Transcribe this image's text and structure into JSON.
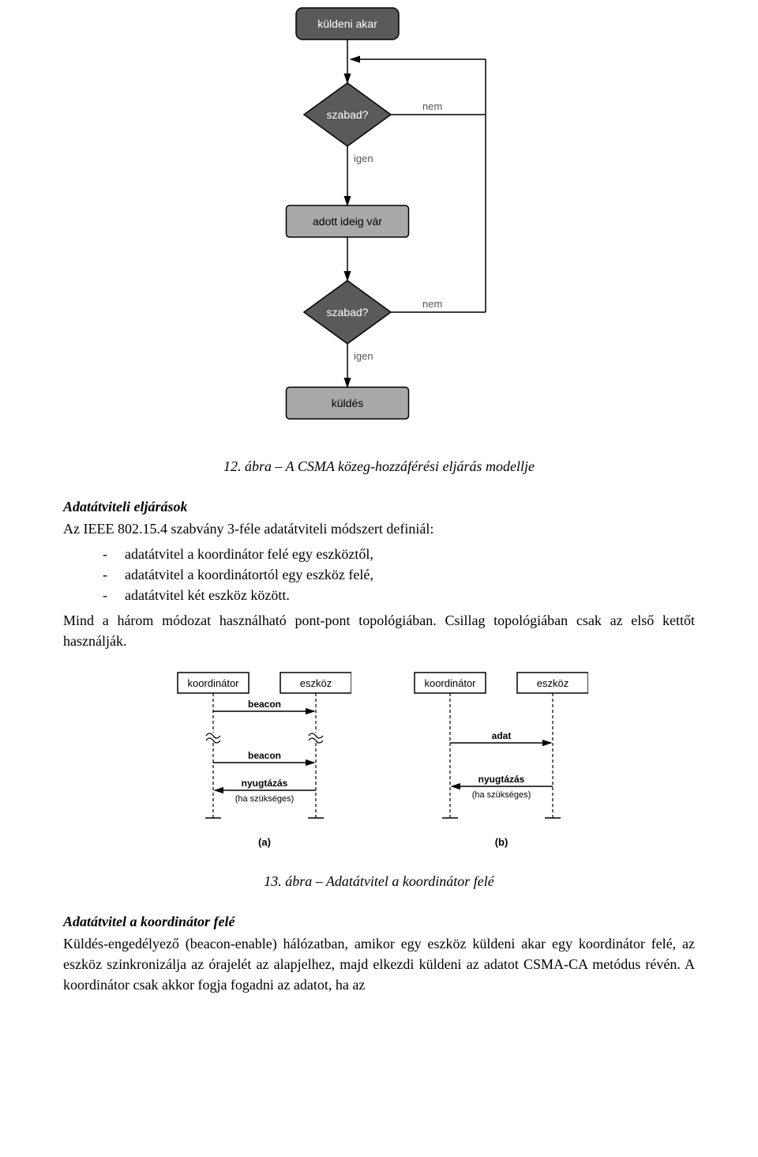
{
  "flowchart": {
    "type": "flowchart",
    "nodes": {
      "start": {
        "label": "küldeni akar",
        "shape": "rect",
        "fill": "#5a5a5a",
        "text_color": "#ffffff",
        "border": "#000000",
        "rx": 8
      },
      "free1": {
        "label": "szabad?",
        "shape": "diamond",
        "fill": "#5a5a5a",
        "text_color": "#ffffff",
        "border": "#000000"
      },
      "wait": {
        "label": "adott ideig vár",
        "shape": "rect",
        "fill": "#a9a9a9",
        "text_color": "#000000",
        "border": "#000000",
        "rx": 4
      },
      "free2": {
        "label": "szabad?",
        "shape": "diamond",
        "fill": "#5a5a5a",
        "text_color": "#ffffff",
        "border": "#000000"
      },
      "send": {
        "label": "küldés",
        "shape": "rect",
        "fill": "#a9a9a9",
        "text_color": "#000000",
        "border": "#000000",
        "rx": 4
      }
    },
    "edge_labels": {
      "yes": "igen",
      "no": "nem"
    },
    "label_color": "#555555",
    "arrow_color": "#000000",
    "font_family": "Arial",
    "label_fontsize": 13,
    "node_fontsize": 14
  },
  "caption1": "12. ábra – A CSMA közeg-hozzáférési eljárás modellje",
  "heading1": "Adatátviteli eljárások",
  "para1": "Az IEEE 802.15.4 szabvány 3-féle adatátviteli módszert definiál:",
  "bullets": [
    "adatátvitel a koordinátor felé egy eszköztől,",
    "adatátvitel a koordinátortól egy eszköz felé,",
    "adatátvitel két eszköz között."
  ],
  "para2": "Mind a három módozat használható pont-pont topológiában. Csillag topológiában csak az első kettőt használják.",
  "seq": {
    "type": "sequence-diagram",
    "roles": {
      "coord": "koordinátor",
      "device": "eszköz"
    },
    "panel_a": {
      "label": "(a)",
      "messages": [
        {
          "text": "beacon",
          "from": "coord",
          "to": "device"
        },
        {
          "text": "beacon",
          "from": "coord",
          "to": "device"
        },
        {
          "text": "nyugtázás",
          "from": "device",
          "to": "coord",
          "note": "(ha szükséges)"
        }
      ]
    },
    "panel_b": {
      "label": "(b)",
      "messages": [
        {
          "text": "adat",
          "from": "coord",
          "to": "device"
        },
        {
          "text": "nyugtázás",
          "from": "device",
          "to": "coord",
          "note": "(ha szükséges)"
        }
      ]
    },
    "line_color": "#000000",
    "text_color": "#000000",
    "font_family": "Arial",
    "role_fontsize": 13,
    "msg_fontsize": 12,
    "note_fontsize": 11
  },
  "caption2": "13. ábra – Adatátvitel a koordinátor felé",
  "heading2": "Adatátvitel a koordinátor felé",
  "para3": "Küldés-engedélyező (beacon-enable) hálózatban, amikor egy eszköz küldeni akar egy koordinátor felé, az eszköz szinkronizálja az órajelét az alapjelhez, majd elkezdi küldeni az adatot CSMA-CA metódus révén. A koordinátor csak akkor fogja fogadni az adatot, ha az"
}
